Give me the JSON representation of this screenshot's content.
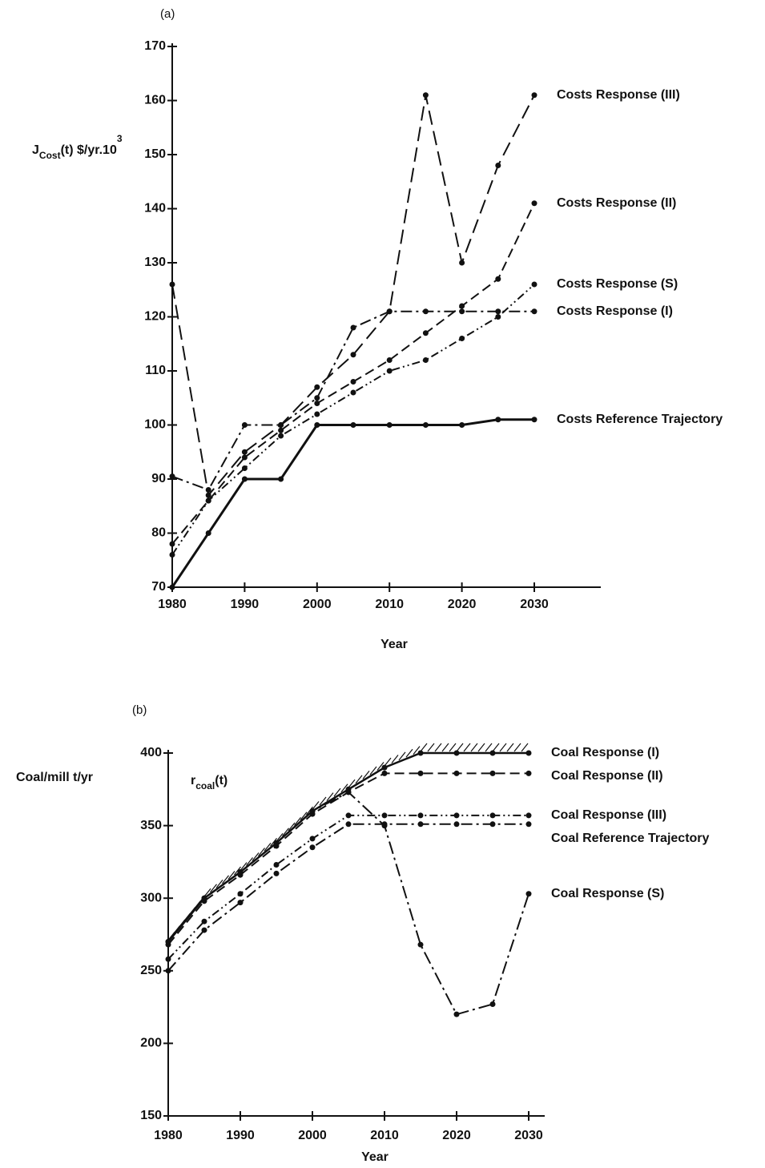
{
  "chart_data": [
    {
      "type": "line",
      "panel": "(a)",
      "ylabel": [
        {
          "text": "J"
        },
        {
          "text": "Cost",
          "shift": "sub"
        },
        {
          "text": "(t)  $/yr.10"
        },
        {
          "text": "3",
          "shift": "sup"
        }
      ],
      "xlabel": "Year",
      "x": [
        1980,
        1985,
        1990,
        1995,
        2000,
        2005,
        2010,
        2015,
        2020,
        2025,
        2030
      ],
      "xlim": [
        1980,
        2030
      ],
      "xticks": [
        1980,
        1990,
        2000,
        2010,
        2020,
        2030
      ],
      "ylim": [
        70,
        170
      ],
      "yticks": [
        70,
        80,
        90,
        100,
        110,
        120,
        130,
        140,
        150,
        160,
        170
      ],
      "series": [
        {
          "name": "Costs Response (III)",
          "color": "#111",
          "dash": "18 8",
          "values": [
            126,
            87,
            95,
            100,
            107,
            113,
            121,
            161,
            130,
            148,
            161
          ]
        },
        {
          "name": "Costs Response (II)",
          "color": "#111",
          "dash": "12 6",
          "values": [
            78,
            86,
            94,
            99,
            104,
            108,
            112,
            117,
            122,
            127,
            141
          ]
        },
        {
          "name": "Costs Response (S)",
          "color": "#111",
          "dash": "10 4 2 4 2 4",
          "values": [
            76,
            86,
            92,
            98,
            102,
            106,
            110,
            112,
            116,
            120,
            126
          ]
        },
        {
          "name": "Costs Response (I)",
          "color": "#111",
          "dash": "14 5 3 5",
          "values": [
            90.5,
            88,
            100,
            100,
            105,
            118,
            121,
            121,
            121,
            121,
            121
          ]
        },
        {
          "name": "Costs Reference Trajectory",
          "color": "#111",
          "width": 3,
          "values": [
            70,
            80,
            90,
            90,
            100,
            100,
            100,
            100,
            100,
            101,
            101
          ]
        }
      ]
    },
    {
      "type": "line",
      "panel": "(b)",
      "ylabel": [
        {
          "text": "Coal/mill t/yr"
        }
      ],
      "ylabel2": [
        {
          "text": "r"
        },
        {
          "text": "coal",
          "shift": "sub"
        },
        {
          "text": "(t)"
        }
      ],
      "xlabel": "Year",
      "x": [
        1980,
        1985,
        1990,
        1995,
        2000,
        2005,
        2010,
        2015,
        2020,
        2025,
        2030
      ],
      "xlim": [
        1980,
        2030
      ],
      "xticks": [
        1980,
        1990,
        2000,
        2010,
        2020,
        2030
      ],
      "ylim": [
        150,
        400
      ],
      "yticks": [
        150,
        200,
        250,
        300,
        350,
        400
      ],
      "series": [
        {
          "name": "Coal Response (I)",
          "color": "#111",
          "width": 2.5,
          "hatched": true,
          "values": [
            270,
            300,
            318,
            338,
            360,
            375,
            390,
            400,
            400,
            400,
            400
          ]
        },
        {
          "name": "Coal Response (II)",
          "color": "#111",
          "dash": "12 6",
          "values": [
            268,
            298,
            316,
            336,
            358,
            373,
            386,
            386,
            386,
            386,
            386
          ]
        },
        {
          "name": "Coal Response (III)",
          "color": "#111",
          "dash": "10 4 2 4 2 4",
          "values": [
            258,
            284,
            303,
            323,
            341,
            357,
            357,
            357,
            357,
            357,
            357
          ]
        },
        {
          "name": "Coal Reference Trajectory",
          "color": "#111",
          "dash": "14 5 3 5",
          "values": [
            250,
            278,
            297,
            317,
            335,
            351,
            351,
            351,
            351,
            351,
            351
          ]
        },
        {
          "name": "Coal Response (S)",
          "color": "#111",
          "dash": "16 5 3 5",
          "values": [
            270,
            300,
            318,
            338,
            360,
            373,
            350,
            268,
            220,
            227,
            303
          ]
        }
      ]
    }
  ]
}
